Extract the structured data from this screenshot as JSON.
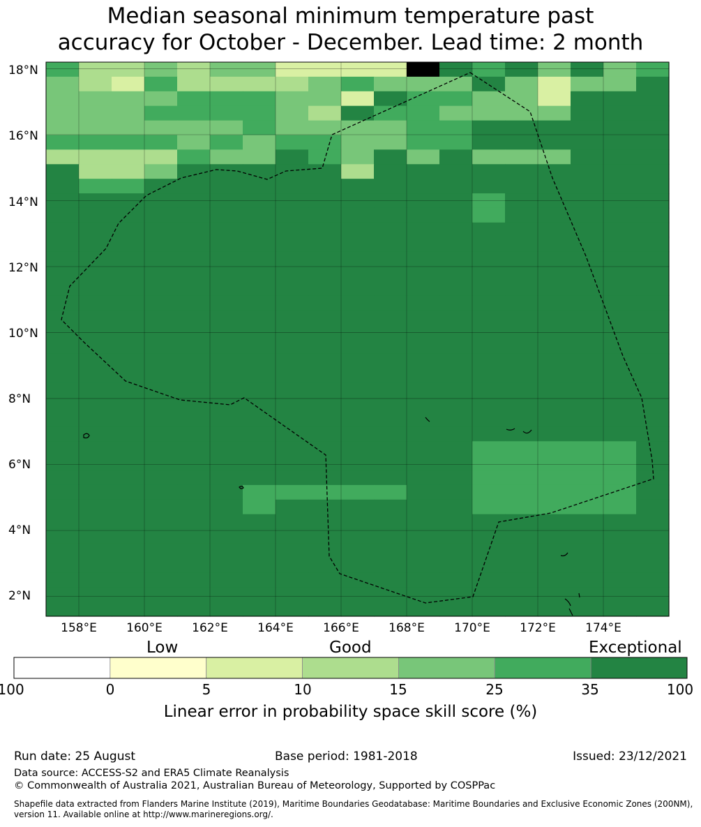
{
  "title_line1": "Median seasonal minimum temperature past",
  "title_line2": "accuracy for October - December. Lead time: 2 month",
  "map": {
    "lat_labels": [
      "18°N",
      "16°N",
      "14°N",
      "12°N",
      "10°N",
      "8°N",
      "6°N",
      "4°N",
      "2°N"
    ],
    "lon_labels": [
      "158°E",
      "160°E",
      "162°E",
      "164°E",
      "166°E",
      "168°E",
      "170°E",
      "172°E",
      "174°E"
    ],
    "lat_values": [
      18,
      16,
      14,
      12,
      10,
      8,
      6,
      4,
      2
    ],
    "lon_values": [
      158,
      160,
      162,
      164,
      166,
      168,
      170,
      172,
      174
    ],
    "extent": {
      "lon_min": 157.0,
      "lon_max": 176.0,
      "lat_min": 1.4,
      "lat_max": 18.2
    },
    "grid_rows_north_to_south": [
      "5334344222276564645",
      "4325333345444642446",
      "4444555442655442666",
      "4445555436554444666",
      "4444445444455666666",
      "5555454554455666666",
      "3333544654646444666",
      "6334666663666666666",
      "6556666666666666666",
      "6666666666666566666",
      "6666666666666566666",
      "6666666666666666666",
      "6666666666666666666",
      "6666666666666666666",
      "6666666666666666666",
      "6666666666666666666",
      "6666666666666666666",
      "6666666666666666666",
      "6666666666666666666",
      "6666666666666666666",
      "6666666666666666666",
      "6666666666666666666",
      "6666666666666666666",
      "6666666666666666666",
      "6666666666666666666",
      "6666666666666666666",
      "6666666666666555556",
      "6666666666666555556",
      "6666666666666555556",
      "6666665555566555556",
      "6666665666666555556",
      "6666666666666666666",
      "6666666666666666666",
      "6666666666666666666",
      "6666666666666666666",
      "6666666666666666666",
      "6666666666666666666",
      "6666666666666666666"
    ],
    "grid_colors": [
      "#ffffff",
      "#ffffcc",
      "#d9f0a3",
      "#addd8e",
      "#78c679",
      "#41ab5d",
      "#238443"
    ]
  },
  "colorbar": {
    "word_low": "Low",
    "word_good": "Good",
    "word_exceptional": "Exceptional",
    "ticks": [
      "-100",
      "0",
      "5",
      "10",
      "15",
      "25",
      "35",
      "100"
    ],
    "colors": [
      "#ffffff",
      "#ffffcc",
      "#d9f0a3",
      "#addd8e",
      "#78c679",
      "#41ab5d",
      "#238443"
    ],
    "title": "Linear error in probability space skill score (%)"
  },
  "footer": {
    "run_date": "Run date: 25 August",
    "base_period": "Base period: 1981-2018",
    "issued": "Issued: 23/12/2021",
    "data_source": "Data source: ACCESS-S2 and ERA5 Climate Reanalysis",
    "copyright": "© Commonwealth of Australia 2021, Australian Bureau of Meteorology, Supported by COSPPac",
    "shapefile": "Shapefile data extracted from Flanders Marine Institute (2019), Maritime Boundaries Geodatabase: Maritime Boundaries and Exclusive Economic Zones (200NM), version 11. Available online at http://www.marineregions.org/."
  }
}
